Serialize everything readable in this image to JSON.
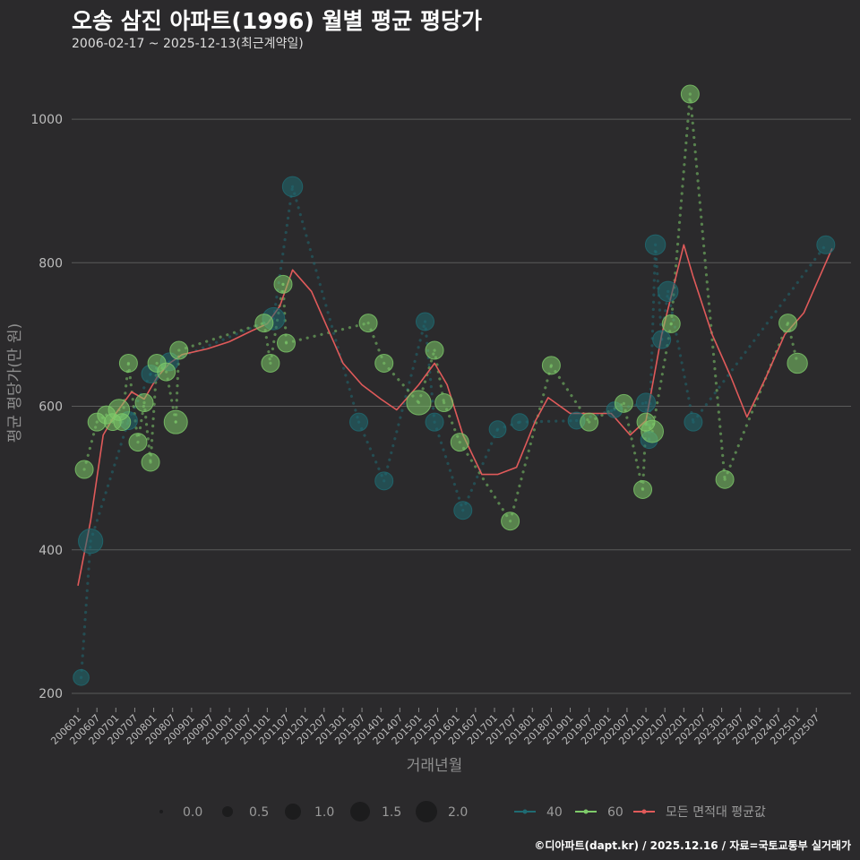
{
  "title": "오송 삼진 아파트(1996) 월별 평균 평당가",
  "subtitle": "2006-02-17 ~ 2025-12-13(최근계약일)",
  "footer": "©디아파트(dapt.kr) / 2025.12.16 / 자료=국토교통부 실거래가",
  "colors": {
    "s40": "#1f6b73",
    "s60": "#7ecb6a",
    "avg": "#e05a5a",
    "grid": "#5a5a5a",
    "bg": "#2b2a2c"
  },
  "chart_data": {
    "type": "scatter",
    "title": "오송 삼진 아파트(1996) 월별 평균 평당가",
    "xlabel": "거래년월",
    "ylabel": "평균 평당가(만 원)",
    "ylim": [
      180,
      1060
    ],
    "yticks": [
      200,
      400,
      600,
      800,
      1000
    ],
    "x_range": [
      "2006-01",
      "2025-12"
    ],
    "xtick_labels": [
      "200601",
      "200607",
      "200701",
      "200707",
      "200801",
      "200807",
      "200901",
      "200907",
      "201001",
      "201007",
      "201101",
      "201107",
      "201201",
      "201207",
      "201301",
      "201307",
      "201401",
      "201407",
      "201501",
      "201507",
      "201601",
      "201607",
      "201701",
      "201707",
      "201801",
      "201807",
      "201901",
      "201907",
      "202001",
      "202007",
      "202101",
      "202107",
      "202201",
      "202207",
      "202301",
      "202307",
      "202401",
      "202407",
      "202501",
      "202507"
    ],
    "size_legend": {
      "values": [
        "0.0",
        "0.5",
        "1.0",
        "1.5",
        "2.0"
      ]
    },
    "series_legend": [
      {
        "key": "s40",
        "label": "40"
      },
      {
        "key": "s60",
        "label": "60"
      },
      {
        "key": "avg",
        "label": "모든 면적대 평균값"
      }
    ],
    "series": [
      {
        "name": "40",
        "points": [
          [
            "2006-02",
            222,
            0.8
          ],
          [
            "2006-05",
            412,
            1.6
          ],
          [
            "2007-05",
            580,
            1.0
          ],
          [
            "2007-12",
            645,
            1.0
          ],
          [
            "2008-06",
            662,
            1.0
          ],
          [
            "2011-03",
            722,
            1.4
          ],
          [
            "2011-09",
            906,
            1.2
          ],
          [
            "2013-06",
            578,
            1.0
          ],
          [
            "2014-02",
            496,
            1.0
          ],
          [
            "2015-03",
            718,
            1.0
          ],
          [
            "2015-06",
            578,
            1.0
          ],
          [
            "2016-03",
            455,
            1.0
          ],
          [
            "2017-02",
            568,
            0.9
          ],
          [
            "2017-09",
            578,
            0.9
          ],
          [
            "2019-03",
            580,
            0.9
          ],
          [
            "2020-03",
            595,
            0.8
          ],
          [
            "2021-01",
            605,
            1.1
          ],
          [
            "2021-02",
            553,
            0.9
          ],
          [
            "2021-04",
            825,
            1.2
          ],
          [
            "2021-06",
            693,
            1.0
          ],
          [
            "2021-08",
            760,
            1.2
          ],
          [
            "2022-04",
            578,
            1.0
          ],
          [
            "2025-10",
            825,
            1.0
          ]
        ]
      },
      {
        "name": "60",
        "points": [
          [
            "2006-03",
            512,
            1.0
          ],
          [
            "2006-07",
            578,
            1.0
          ],
          [
            "2006-10",
            588,
            1.0
          ],
          [
            "2006-12",
            578,
            0.9
          ],
          [
            "2007-02",
            595,
            1.3
          ],
          [
            "2007-03",
            578,
            0.9
          ],
          [
            "2007-05",
            660,
            1.0
          ],
          [
            "2007-08",
            550,
            1.0
          ],
          [
            "2007-10",
            605,
            1.0
          ],
          [
            "2007-12",
            522,
            1.0
          ],
          [
            "2008-02",
            660,
            1.0
          ],
          [
            "2008-05",
            648,
            1.0
          ],
          [
            "2008-08",
            578,
            1.5
          ],
          [
            "2008-09",
            678,
            1.0
          ],
          [
            "2010-12",
            716,
            1.0
          ],
          [
            "2011-02",
            660,
            1.0
          ],
          [
            "2011-06",
            770,
            1.0
          ],
          [
            "2011-07",
            688,
            1.0
          ],
          [
            "2013-09",
            716,
            1.0
          ],
          [
            "2014-02",
            660,
            1.0
          ],
          [
            "2015-01",
            605,
            1.6
          ],
          [
            "2015-06",
            678,
            1.0
          ],
          [
            "2015-09",
            605,
            1.0
          ],
          [
            "2016-02",
            550,
            1.0
          ],
          [
            "2017-06",
            440,
            1.0
          ],
          [
            "2018-07",
            657,
            1.0
          ],
          [
            "2019-07",
            578,
            1.0
          ],
          [
            "2020-06",
            604,
            1.0
          ],
          [
            "2020-12",
            484,
            1.0
          ],
          [
            "2021-01",
            578,
            1.0
          ],
          [
            "2021-03",
            565,
            1.4
          ],
          [
            "2021-09",
            715,
            1.0
          ],
          [
            "2022-03",
            1035,
            1.0
          ],
          [
            "2023-02",
            498,
            1.0
          ],
          [
            "2024-10",
            716,
            1.0
          ],
          [
            "2025-01",
            660,
            1.2
          ]
        ]
      },
      {
        "name": "모든 면적대 평균값",
        "line": [
          [
            "2006-01",
            350
          ],
          [
            "2006-05",
            440
          ],
          [
            "2006-09",
            560
          ],
          [
            "2007-01",
            590
          ],
          [
            "2007-06",
            620
          ],
          [
            "2007-10",
            610
          ],
          [
            "2008-02",
            640
          ],
          [
            "2008-06",
            660
          ],
          [
            "2008-10",
            672
          ],
          [
            "2009-06",
            680
          ],
          [
            "2010-01",
            690
          ],
          [
            "2010-08",
            705
          ],
          [
            "2011-01",
            715
          ],
          [
            "2011-05",
            740
          ],
          [
            "2011-09",
            790
          ],
          [
            "2012-03",
            760
          ],
          [
            "2012-08",
            710
          ],
          [
            "2013-01",
            660
          ],
          [
            "2013-07",
            630
          ],
          [
            "2014-01",
            610
          ],
          [
            "2014-06",
            595
          ],
          [
            "2015-01",
            630
          ],
          [
            "2015-06",
            660
          ],
          [
            "2015-10",
            630
          ],
          [
            "2016-03",
            560
          ],
          [
            "2016-09",
            505
          ],
          [
            "2017-02",
            505
          ],
          [
            "2017-08",
            515
          ],
          [
            "2018-02",
            580
          ],
          [
            "2018-06",
            612
          ],
          [
            "2019-01",
            590
          ],
          [
            "2019-08",
            590
          ],
          [
            "2020-02",
            590
          ],
          [
            "2020-08",
            560
          ],
          [
            "2021-01",
            580
          ],
          [
            "2021-06",
            700
          ],
          [
            "2022-01",
            825
          ],
          [
            "2022-04",
            780
          ],
          [
            "2022-10",
            700
          ],
          [
            "2023-04",
            640
          ],
          [
            "2023-09",
            585
          ],
          [
            "2024-03",
            640
          ],
          [
            "2024-09",
            700
          ],
          [
            "2025-03",
            730
          ],
          [
            "2025-06",
            760
          ],
          [
            "2025-12",
            820
          ]
        ]
      }
    ]
  }
}
